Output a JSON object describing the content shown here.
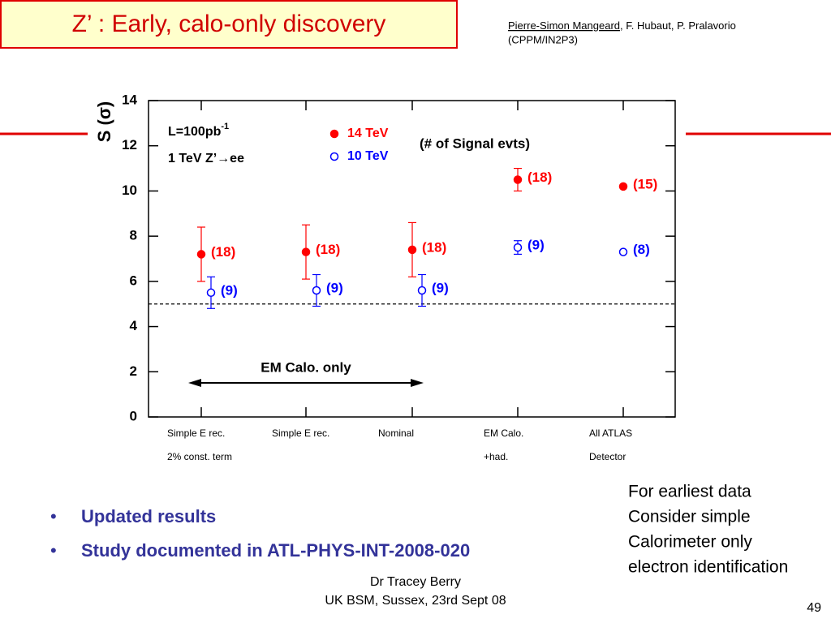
{
  "slide": {
    "title": "Z’ : Early, calo-only discovery",
    "authors": {
      "underlined": "Pierre-Simon Mangeard",
      "rest": ", F. Hubaut, P. Pralavorio",
      "affiliation": "(CPPM/IN2P3)"
    },
    "bullets": [
      "Updated results",
      "Study documented  in ATL-PHYS-INT-2008-020"
    ],
    "note": [
      "For earliest data",
      "Consider simple",
      "Calorimeter only",
      "electron identification"
    ],
    "footer": [
      "Dr Tracey Berry",
      "UK BSM, Sussex, 23rd Sept 08"
    ],
    "page_number": "49"
  },
  "chart_data": {
    "type": "errorbar-scatter",
    "y_label": "S (σ)",
    "categories": [
      [
        "Simple E rec.",
        "2% const. term"
      ],
      [
        "Simple E rec."
      ],
      [
        "Nominal"
      ],
      [
        "EM Calo.",
        "+had."
      ],
      [
        "All ATLAS",
        "Detector"
      ]
    ],
    "series": [
      {
        "name": "14 TeV",
        "color": "#ff0000",
        "marker": "filled",
        "values": [
          7.2,
          7.3,
          7.4,
          10.5,
          10.2
        ],
        "errors": [
          1.2,
          1.2,
          1.2,
          0.5,
          0
        ],
        "event_labels": [
          "(18)",
          "(18)",
          "(18)",
          "(18)",
          "(15)"
        ]
      },
      {
        "name": "10 TeV",
        "color": "#0000ff",
        "marker": "open",
        "values": [
          5.5,
          5.6,
          5.6,
          7.5,
          7.3
        ],
        "errors": [
          0.7,
          0.7,
          0.7,
          0.3,
          0
        ],
        "event_labels": [
          "(9)",
          "(9)",
          "(9)",
          "(9)",
          "(8)"
        ]
      }
    ],
    "ylim": [
      0,
      14
    ],
    "yticks": [
      0,
      2,
      4,
      6,
      8,
      10,
      12,
      14
    ],
    "threshold": 5,
    "luminosity": {
      "text": "L=100pb",
      "sup": "-1"
    },
    "process": "1 TeV Z’→ee",
    "events_note": "(# of Signal evts)",
    "range_annotation": {
      "text": "EM Calo. only",
      "from": 0,
      "to": 2
    }
  }
}
